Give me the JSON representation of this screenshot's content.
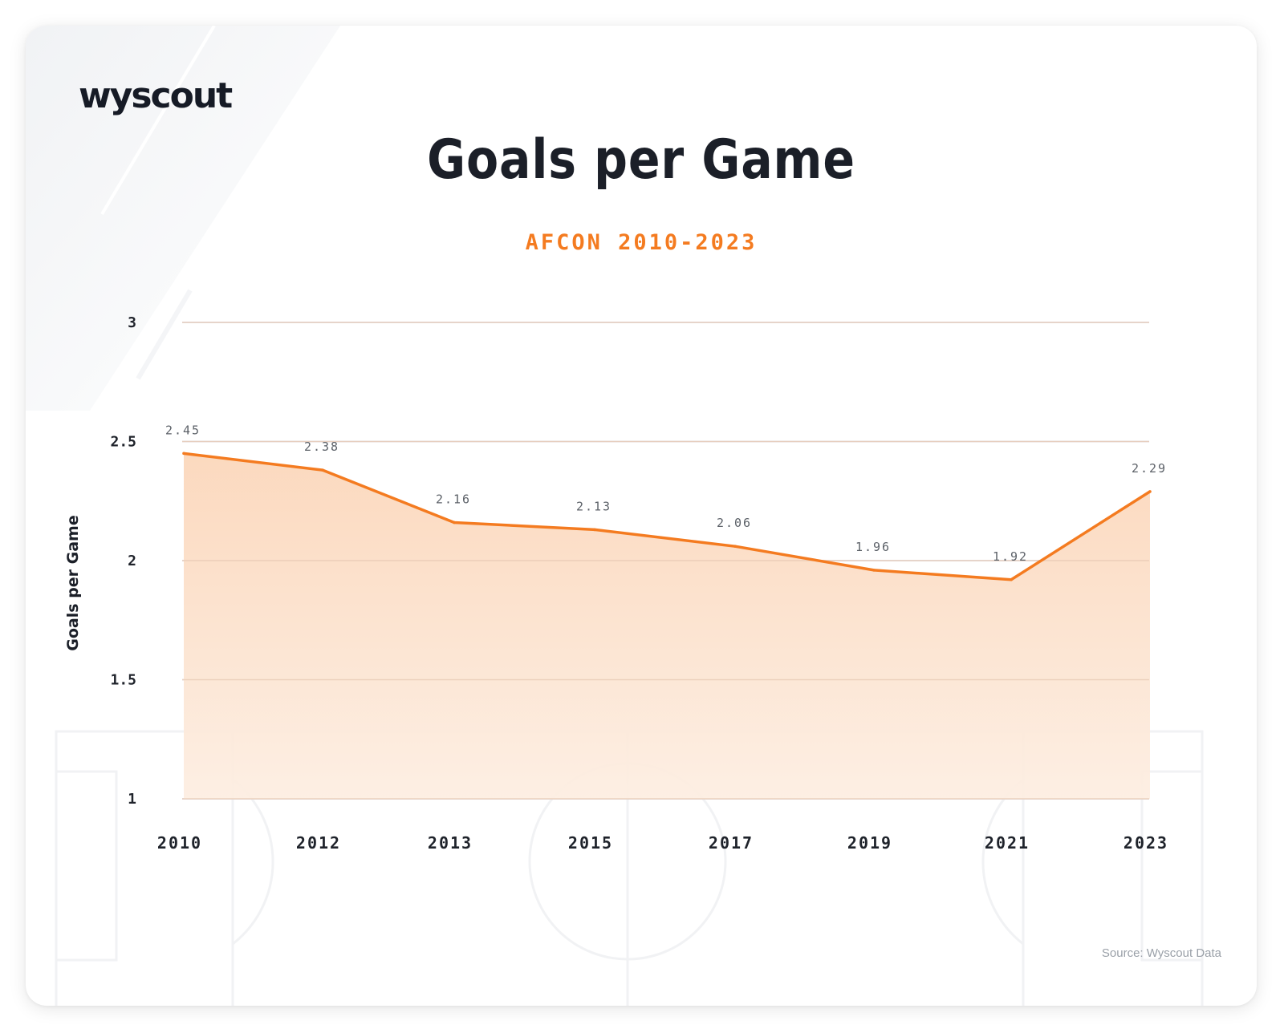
{
  "brand": {
    "logo_text": "wyscout"
  },
  "source": "Source: Wyscout Data",
  "colors": {
    "accent": "#f47b20",
    "area_fill_top": "#fbd7bb",
    "area_fill_bottom": "#fdeee2",
    "text_dark": "#1b1f28",
    "grid": "#e2e4e8"
  },
  "chart_data": {
    "type": "area",
    "title": "Goals per Game",
    "subtitle": "AFCON 2010-2023",
    "xlabel": "",
    "ylabel": "Goals per Game",
    "categories": [
      "2010",
      "2012",
      "2013",
      "2015",
      "2017",
      "2019",
      "2021",
      "2023"
    ],
    "values": [
      2.45,
      2.38,
      2.16,
      2.13,
      2.06,
      1.96,
      1.92,
      2.29
    ],
    "value_labels": [
      "2.45",
      "2.38",
      "2.16",
      "2.13",
      "2.06",
      "1.96",
      "1.92",
      "2.29"
    ],
    "ylim": [
      1,
      3
    ],
    "yticks": [
      1,
      1.5,
      2,
      2.5,
      3
    ],
    "ytick_labels": [
      "1",
      "1.5",
      "2",
      "2.5",
      "3"
    ],
    "grid": true,
    "legend": "none"
  }
}
